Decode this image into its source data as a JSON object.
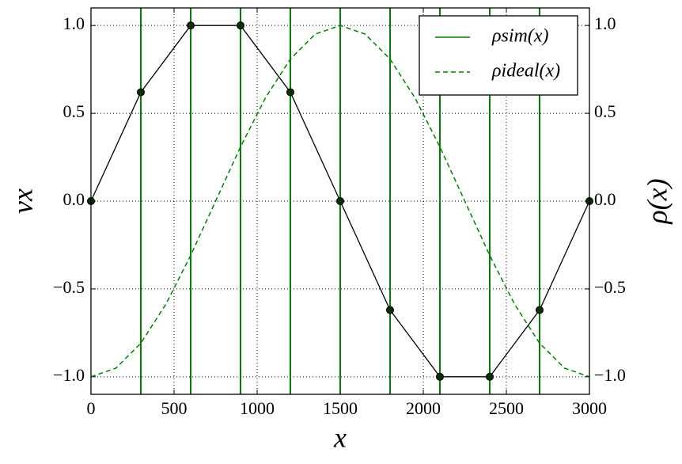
{
  "chart_data": {
    "type": "line",
    "xlabel": "x",
    "ylabel": "vx",
    "y2label": "ρ(x)",
    "xlim": [
      0,
      3000
    ],
    "ylim": [
      -1.1,
      1.1
    ],
    "y2lim": [
      -1.1,
      1.1
    ],
    "xticks": [
      0,
      500,
      1000,
      1500,
      2000,
      2500,
      3000
    ],
    "yticks": [
      {
        "value": -1,
        "label": "−1.0"
      },
      {
        "value": -0.5,
        "label": "−0.5"
      },
      {
        "value": 0,
        "label": "0.0"
      },
      {
        "value": 0.5,
        "label": "0.5"
      },
      {
        "value": 1,
        "label": "1.0"
      }
    ],
    "y2ticks": [
      {
        "value": -1,
        "label": "−1.0"
      },
      {
        "value": -0.5,
        "label": "−0.5"
      },
      {
        "value": 0,
        "label": "0.0"
      },
      {
        "value": 0.5,
        "label": "0.5"
      },
      {
        "value": 1,
        "label": "1.0"
      }
    ],
    "grid": true,
    "legend": "upper right",
    "velocity": {
      "color": "#000000",
      "marker_color": "#0b2e0b",
      "x": [
        0,
        300,
        600,
        900,
        1200,
        1500,
        1800,
        2100,
        2400,
        2700,
        3000
      ],
      "values": [
        0,
        0.62,
        1,
        1,
        0.62,
        0,
        -0.62,
        -1,
        -1,
        -0.62,
        0
      ]
    },
    "series": [
      {
        "name": "ρsim(x)",
        "color": "#008000",
        "style": "vlines",
        "x": [
          300,
          600,
          900,
          1200,
          1500,
          1800,
          2100,
          2400,
          2700
        ]
      },
      {
        "name": "ρideal(x)",
        "color": "#008000",
        "style": "dashed",
        "axis": "y2",
        "x": [
          0,
          150,
          300,
          450,
          600,
          750,
          900,
          1050,
          1200,
          1350,
          1500,
          1650,
          1800,
          1950,
          2100,
          2250,
          2400,
          2550,
          2700,
          2850,
          3000
        ],
        "values": [
          -1,
          -0.951,
          -0.809,
          -0.588,
          -0.309,
          0,
          0.309,
          0.588,
          0.809,
          0.951,
          1,
          0.951,
          0.809,
          0.588,
          0.309,
          0,
          -0.309,
          -0.588,
          -0.809,
          -0.951,
          -1
        ]
      }
    ]
  }
}
